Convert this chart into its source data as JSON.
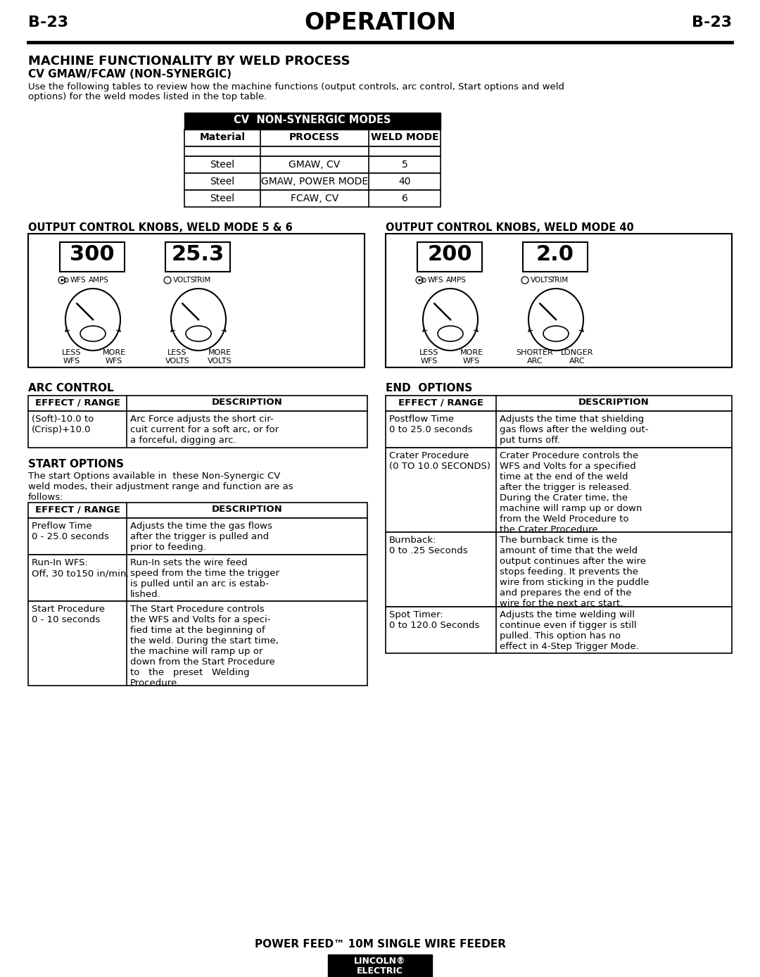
{
  "page_label": "B-23",
  "page_title": "OPERATION",
  "section_title": "MACHINE FUNCTIONALITY BY WELD PROCESS",
  "subtitle": "CV GMAW/FCAW (NON-SYNERGIC)",
  "intro_line1": "Use the following tables to review how the machine functions (output controls, arc control, Start options and weld",
  "intro_line2": "options) for the weld modes listed in the top table.",
  "table_header": "CV  NON-SYNERGIC MODES",
  "table_cols": [
    "Material",
    "PROCESS",
    "WELD MODE"
  ],
  "table_rows": [
    [
      "Steel",
      "GMAW, CV",
      "5"
    ],
    [
      "Steel",
      "GMAW, POWER MODE",
      "40"
    ],
    [
      "Steel",
      "FCAW, CV",
      "6"
    ]
  ],
  "knobs_left_title": "OUTPUT CONTROL KNOBS, WELD MODE 5 & 6",
  "knobs_right_title": "OUTPUT CONTROL KNOBS, WELD MODE 40",
  "knob_left_val1": "300",
  "knob_left_val2": "25.3",
  "knob_left_label1a": "WFS",
  "knob_left_label1b": "AMPS",
  "knob_left_label2a": "VOLTS",
  "knob_left_label2b": "TRIM",
  "knob_left_below1a": "LESS\nWFS",
  "knob_left_below1b": "MORE\nWFS",
  "knob_left_below2a": "LESS\nVOLTS",
  "knob_left_below2b": "MORE\nVOLTS",
  "knob_right_val1": "200",
  "knob_right_val2": "2.0",
  "knob_right_label1a": "WFS",
  "knob_right_label1b": "AMPS",
  "knob_right_label2a": "VOLTS",
  "knob_right_label2b": "TRIM",
  "knob_right_below1a": "LESS\nWFS",
  "knob_right_below1b": "MORE\nWFS",
  "knob_right_below2a": "SHORTER\nARC",
  "knob_right_below2b": "LONGER\nARC",
  "arc_control_title": "ARC CONTROL",
  "arc_table_cols": [
    "EFFECT / RANGE",
    "DESCRIPTION"
  ],
  "arc_table_rows": [
    [
      "(Soft)-10.0 to\n(Crisp)+10.0",
      "Arc Force adjusts the short cir-\ncuit current for a soft arc, or for\na forceful, digging arc."
    ]
  ],
  "start_options_title": "START OPTIONS",
  "start_options_intro": "The start Options available in  these Non-Synergic CV\nweld modes, their adjustment range and function are as\nfollows:",
  "start_table_cols": [
    "EFFECT / RANGE",
    "DESCRIPTION"
  ],
  "start_table_rows": [
    [
      "Preflow Time\n0 - 25.0 seconds",
      "Adjusts the time the gas flows\nafter the trigger is pulled and\nprior to feeding."
    ],
    [
      "Run-In WFS:\nOff, 30 to150 in/min.",
      "Run-In sets the wire feed\nspeed from the time the trigger\nis pulled until an arc is estab-\nlished."
    ],
    [
      "Start Procedure\n0 - 10 seconds",
      "The Start Procedure controls\nthe WFS and Volts for a speci-\nfied time at the beginning of\nthe weld. During the start time,\nthe machine will ramp up or\ndown from the Start Procedure\nto   the   preset   Welding\nProcedure."
    ]
  ],
  "end_options_title": "END  OPTIONS",
  "end_table_cols": [
    "EFFECT / RANGE",
    "DESCRIPTION"
  ],
  "end_table_rows": [
    [
      "Postflow Time\n0 to 25.0 seconds",
      "Adjusts the time that shielding\ngas flows after the welding out-\nput turns off."
    ],
    [
      "Crater Procedure\n(0 TO 10.0 SECONDS)",
      "Crater Procedure controls the\nWFS and Volts for a specified\ntime at the end of the weld\nafter the trigger is released.\nDuring the Crater time, the\nmachine will ramp up or down\nfrom the Weld Procedure to\nthe Crater Procedure."
    ],
    [
      "Burnback:\n0 to .25 Seconds",
      "The burnback time is the\namount of time that the weld\noutput continues after the wire\nstops feeding. It prevents the\nwire from sticking in the puddle\nand prepares the end of the\nwire for the next arc start."
    ],
    [
      "Spot Timer:\n0 to 120.0 Seconds",
      "Adjusts the time welding will\ncontinue even if tigger is still\npulled. This option has no\neffect in 4-Step Trigger Mode."
    ]
  ],
  "footer_text": "POWER FEED™ 10M SINGLE WIRE FEEDER",
  "bg_color": "#ffffff"
}
